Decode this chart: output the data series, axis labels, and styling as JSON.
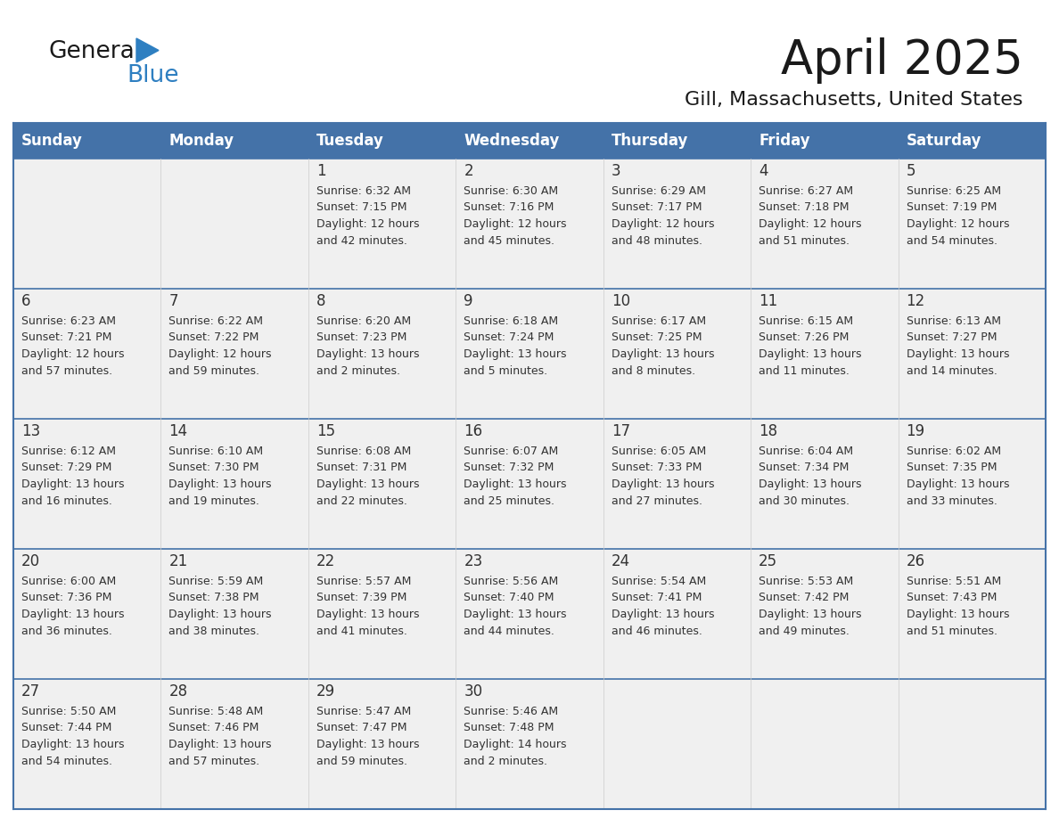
{
  "title": "April 2025",
  "subtitle": "Gill, Massachusetts, United States",
  "days_of_week": [
    "Sunday",
    "Monday",
    "Tuesday",
    "Wednesday",
    "Thursday",
    "Friday",
    "Saturday"
  ],
  "header_bg_color": "#4472A8",
  "header_text_color": "#FFFFFF",
  "cell_bg": "#F0F0F0",
  "cell_bg_empty": "#F0F0F0",
  "cell_border_color": "#4472A8",
  "row_divider_color": "#4472A8",
  "text_color": "#333333",
  "title_color": "#1a1a1a",
  "logo_general_color": "#1a1a1a",
  "logo_blue_color": "#2E7FC1",
  "calendar_data": [
    [
      {
        "day": null,
        "info": ""
      },
      {
        "day": null,
        "info": ""
      },
      {
        "day": 1,
        "info": "Sunrise: 6:32 AM\nSunset: 7:15 PM\nDaylight: 12 hours\nand 42 minutes."
      },
      {
        "day": 2,
        "info": "Sunrise: 6:30 AM\nSunset: 7:16 PM\nDaylight: 12 hours\nand 45 minutes."
      },
      {
        "day": 3,
        "info": "Sunrise: 6:29 AM\nSunset: 7:17 PM\nDaylight: 12 hours\nand 48 minutes."
      },
      {
        "day": 4,
        "info": "Sunrise: 6:27 AM\nSunset: 7:18 PM\nDaylight: 12 hours\nand 51 minutes."
      },
      {
        "day": 5,
        "info": "Sunrise: 6:25 AM\nSunset: 7:19 PM\nDaylight: 12 hours\nand 54 minutes."
      }
    ],
    [
      {
        "day": 6,
        "info": "Sunrise: 6:23 AM\nSunset: 7:21 PM\nDaylight: 12 hours\nand 57 minutes."
      },
      {
        "day": 7,
        "info": "Sunrise: 6:22 AM\nSunset: 7:22 PM\nDaylight: 12 hours\nand 59 minutes."
      },
      {
        "day": 8,
        "info": "Sunrise: 6:20 AM\nSunset: 7:23 PM\nDaylight: 13 hours\nand 2 minutes."
      },
      {
        "day": 9,
        "info": "Sunrise: 6:18 AM\nSunset: 7:24 PM\nDaylight: 13 hours\nand 5 minutes."
      },
      {
        "day": 10,
        "info": "Sunrise: 6:17 AM\nSunset: 7:25 PM\nDaylight: 13 hours\nand 8 minutes."
      },
      {
        "day": 11,
        "info": "Sunrise: 6:15 AM\nSunset: 7:26 PM\nDaylight: 13 hours\nand 11 minutes."
      },
      {
        "day": 12,
        "info": "Sunrise: 6:13 AM\nSunset: 7:27 PM\nDaylight: 13 hours\nand 14 minutes."
      }
    ],
    [
      {
        "day": 13,
        "info": "Sunrise: 6:12 AM\nSunset: 7:29 PM\nDaylight: 13 hours\nand 16 minutes."
      },
      {
        "day": 14,
        "info": "Sunrise: 6:10 AM\nSunset: 7:30 PM\nDaylight: 13 hours\nand 19 minutes."
      },
      {
        "day": 15,
        "info": "Sunrise: 6:08 AM\nSunset: 7:31 PM\nDaylight: 13 hours\nand 22 minutes."
      },
      {
        "day": 16,
        "info": "Sunrise: 6:07 AM\nSunset: 7:32 PM\nDaylight: 13 hours\nand 25 minutes."
      },
      {
        "day": 17,
        "info": "Sunrise: 6:05 AM\nSunset: 7:33 PM\nDaylight: 13 hours\nand 27 minutes."
      },
      {
        "day": 18,
        "info": "Sunrise: 6:04 AM\nSunset: 7:34 PM\nDaylight: 13 hours\nand 30 minutes."
      },
      {
        "day": 19,
        "info": "Sunrise: 6:02 AM\nSunset: 7:35 PM\nDaylight: 13 hours\nand 33 minutes."
      }
    ],
    [
      {
        "day": 20,
        "info": "Sunrise: 6:00 AM\nSunset: 7:36 PM\nDaylight: 13 hours\nand 36 minutes."
      },
      {
        "day": 21,
        "info": "Sunrise: 5:59 AM\nSunset: 7:38 PM\nDaylight: 13 hours\nand 38 minutes."
      },
      {
        "day": 22,
        "info": "Sunrise: 5:57 AM\nSunset: 7:39 PM\nDaylight: 13 hours\nand 41 minutes."
      },
      {
        "day": 23,
        "info": "Sunrise: 5:56 AM\nSunset: 7:40 PM\nDaylight: 13 hours\nand 44 minutes."
      },
      {
        "day": 24,
        "info": "Sunrise: 5:54 AM\nSunset: 7:41 PM\nDaylight: 13 hours\nand 46 minutes."
      },
      {
        "day": 25,
        "info": "Sunrise: 5:53 AM\nSunset: 7:42 PM\nDaylight: 13 hours\nand 49 minutes."
      },
      {
        "day": 26,
        "info": "Sunrise: 5:51 AM\nSunset: 7:43 PM\nDaylight: 13 hours\nand 51 minutes."
      }
    ],
    [
      {
        "day": 27,
        "info": "Sunrise: 5:50 AM\nSunset: 7:44 PM\nDaylight: 13 hours\nand 54 minutes."
      },
      {
        "day": 28,
        "info": "Sunrise: 5:48 AM\nSunset: 7:46 PM\nDaylight: 13 hours\nand 57 minutes."
      },
      {
        "day": 29,
        "info": "Sunrise: 5:47 AM\nSunset: 7:47 PM\nDaylight: 13 hours\nand 59 minutes."
      },
      {
        "day": 30,
        "info": "Sunrise: 5:46 AM\nSunset: 7:48 PM\nDaylight: 14 hours\nand 2 minutes."
      },
      {
        "day": null,
        "info": ""
      },
      {
        "day": null,
        "info": ""
      },
      {
        "day": null,
        "info": ""
      }
    ]
  ]
}
